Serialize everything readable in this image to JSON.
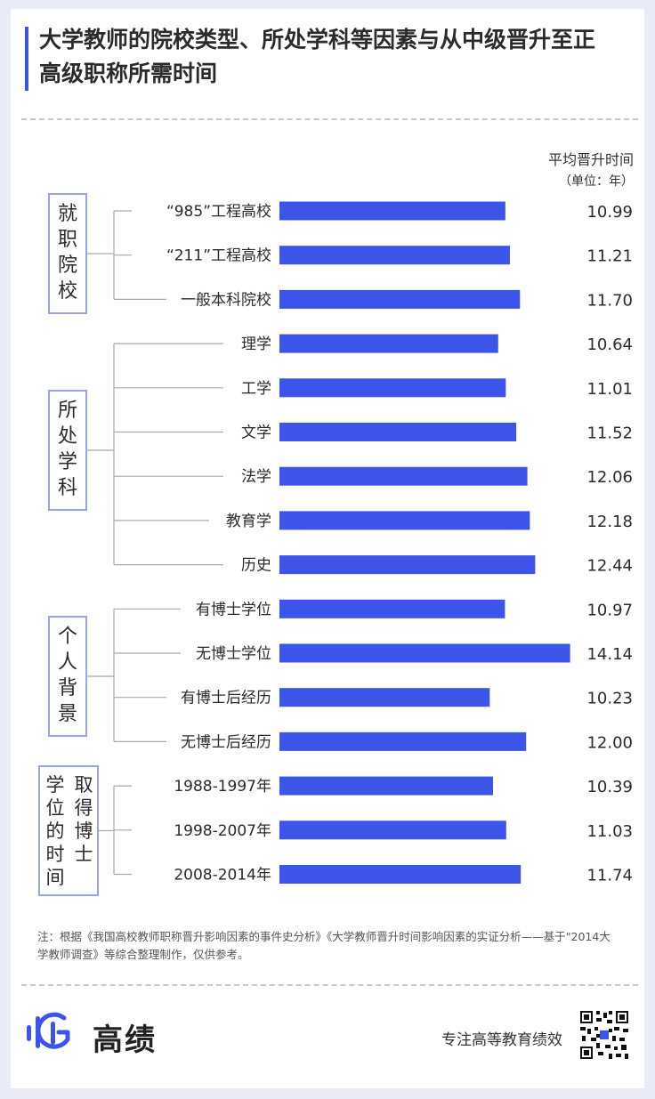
{
  "title": "大学教师的院校类型、所处学科等因素与从中级晋升至正高级职称所需时间",
  "col_header": {
    "main": "平均晋升时间",
    "unit": "（单位：年）"
  },
  "groups": [
    {
      "label": "就职院校",
      "vertical": "就\n职\n院\n校"
    },
    {
      "label": "所处学科",
      "vertical": "所\n处\n学\n科"
    },
    {
      "label": "个人背景",
      "vertical": "个\n人\n背\n景"
    },
    {
      "label": "取得博士学位的时间",
      "vertical": "取得博士学位的时间"
    }
  ],
  "chart_data": {
    "type": "bar",
    "orientation": "horizontal",
    "categories": [
      "“985”工程高校",
      "“211”工程高校",
      "一般本科院校",
      "理学",
      "工学",
      "文学",
      "法学",
      "教育学",
      "历史",
      "有博士学位",
      "无博士学位",
      "有博士后经历",
      "无博士后经历",
      "1988-1997年",
      "1998-2007年",
      "2008-2014年"
    ],
    "values": [
      10.99,
      11.21,
      11.7,
      10.64,
      11.01,
      11.52,
      12.06,
      12.18,
      12.44,
      10.97,
      14.14,
      10.23,
      12.0,
      10.39,
      11.03,
      11.74
    ],
    "value_labels": [
      "10.99",
      "11.21",
      "11.70",
      "10.64",
      "11.01",
      "11.52",
      "12.06",
      "12.18",
      "12.44",
      "10.97",
      "14.14",
      "10.23",
      "12.00",
      "10.39",
      "11.03",
      "11.74"
    ],
    "group_index": [
      0,
      0,
      0,
      1,
      1,
      1,
      1,
      1,
      1,
      2,
      2,
      2,
      2,
      3,
      3,
      3
    ],
    "ylabel": "平均晋升时间",
    "unit": "年",
    "bar_color": "#3d54e8",
    "grid": false,
    "legend": "none"
  },
  "note": "注：根据《我国高校教师职称晋升影响因素的事件史分析》《大学教师晋升时间影响因素的实证分析——基于\"2014大学教师调查》等综合整理制作，仅供参考。",
  "footer": {
    "brand": "高绩",
    "slogan": "专注高等教育绩效",
    "logo_icon": "gaoji-logo-icon",
    "qr_icon": "qr-code-icon"
  },
  "colors": {
    "accent": "#3d54e8",
    "group_box_border": "#9aa3e6",
    "background": "#e9ebf7"
  }
}
